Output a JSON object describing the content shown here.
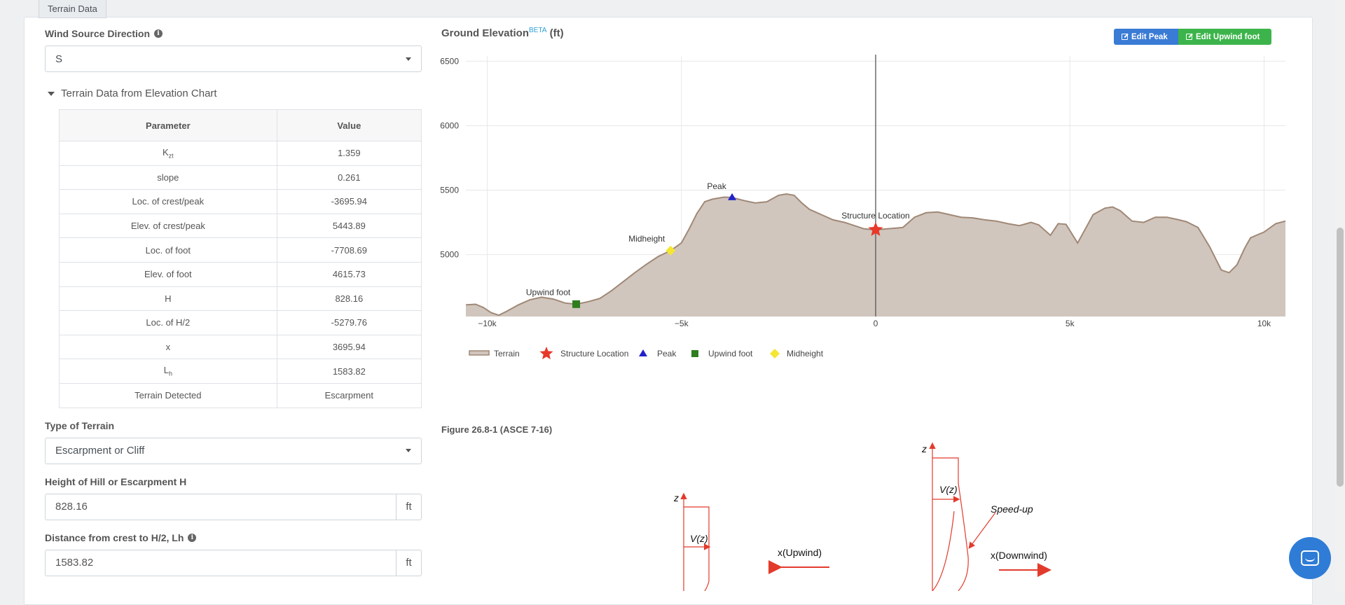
{
  "tab": {
    "label": "Terrain Data"
  },
  "wind": {
    "label": "Wind Source Direction",
    "value": "S"
  },
  "collapse": {
    "label": "Terrain Data from Elevation Chart"
  },
  "table": {
    "headers": [
      "Parameter",
      "Value"
    ],
    "rows": [
      {
        "param": "K",
        "sub": "zt",
        "value": "1.359"
      },
      {
        "param": "slope",
        "value": "0.261"
      },
      {
        "param": "Loc. of crest/peak",
        "value": "-3695.94"
      },
      {
        "param": "Elev. of crest/peak",
        "value": "5443.89"
      },
      {
        "param": "Loc. of foot",
        "value": "-7708.69"
      },
      {
        "param": "Elev. of foot",
        "value": "4615.73"
      },
      {
        "param": "H",
        "value": "828.16"
      },
      {
        "param": "Loc. of H/2",
        "value": "-5279.76"
      },
      {
        "param": "x",
        "value": "3695.94"
      },
      {
        "param": "L",
        "sub": "h",
        "value": "1583.82"
      },
      {
        "param": "Terrain Detected",
        "value": "Escarpment"
      }
    ]
  },
  "terrain_type": {
    "label": "Type of Terrain",
    "value": "Escarpment or Cliff"
  },
  "height": {
    "label": "Height of Hill or Escarpment H",
    "value": "828.16",
    "unit": "ft"
  },
  "distance": {
    "label": "Distance from crest to H/2, Lh",
    "value": "1583.82",
    "unit": "ft"
  },
  "chart_header": {
    "title": "Ground Elevation",
    "beta": "BETA",
    "unit": "(ft)"
  },
  "buttons": {
    "edit_peak": "Edit Peak",
    "edit_upwind": "Edit Upwind foot"
  },
  "chart_data": {
    "type": "area",
    "title": "Ground Elevation",
    "xlabel": "",
    "ylabel": "",
    "xlim": [
      -10550,
      10550
    ],
    "ylim": [
      4520,
      6540
    ],
    "x_ticks": [
      -10000,
      -5000,
      0,
      5000,
      10000
    ],
    "x_tick_labels": [
      "−10k",
      "−5k",
      "0",
      "5k",
      "10k"
    ],
    "y_ticks": [
      5000,
      5500,
      6000,
      6500
    ],
    "y_tick_labels": [
      "5000",
      "5500",
      "6000",
      "6500"
    ],
    "grid": true,
    "legend_position": "bottom-left",
    "series": [
      {
        "name": "Terrain",
        "color": "#a08876",
        "fill": "#d0c6be",
        "x": [
          -10550,
          -10300,
          -10100,
          -9900,
          -9700,
          -9500,
          -9200,
          -8900,
          -8600,
          -8300,
          -8000,
          -7708,
          -7400,
          -7100,
          -6800,
          -6500,
          -6200,
          -5900,
          -5600,
          -5279,
          -5000,
          -4800,
          -4600,
          -4400,
          -4200,
          -3900,
          -3695,
          -3400,
          -3100,
          -2800,
          -2500,
          -2300,
          -2100,
          -1900,
          -1700,
          -1400,
          -1100,
          -800,
          -500,
          -300,
          -100,
          0,
          300,
          700,
          1000,
          1300,
          1600,
          1900,
          2200,
          2500,
          2800,
          3100,
          3400,
          3700,
          4000,
          4200,
          4500,
          4700,
          4900,
          5200,
          5400,
          5600,
          5900,
          6100,
          6300,
          6600,
          6900,
          7200,
          7500,
          7800,
          8000,
          8300,
          8600,
          8900,
          9100,
          9300,
          9500,
          9650,
          9800,
          10000,
          10300,
          10550
        ],
        "y": [
          4610,
          4615,
          4590,
          4550,
          4530,
          4560,
          4610,
          4650,
          4670,
          4655,
          4625,
          4615,
          4635,
          4660,
          4720,
          4790,
          4860,
          4925,
          4985,
          5031,
          5090,
          5200,
          5320,
          5410,
          5430,
          5446,
          5443,
          5420,
          5400,
          5410,
          5460,
          5470,
          5460,
          5400,
          5350,
          5310,
          5270,
          5250,
          5220,
          5200,
          5195,
          5193,
          5200,
          5210,
          5290,
          5325,
          5330,
          5310,
          5290,
          5285,
          5270,
          5260,
          5240,
          5225,
          5250,
          5230,
          5150,
          5240,
          5235,
          5090,
          5200,
          5310,
          5360,
          5370,
          5340,
          5260,
          5250,
          5290,
          5290,
          5270,
          5255,
          5210,
          5060,
          4880,
          4860,
          4920,
          5050,
          5130,
          5150,
          5175,
          5240,
          5260
        ]
      },
      {
        "name": "Structure Location",
        "color": "#e8382a",
        "x": [
          0
        ],
        "y": [
          5193
        ]
      },
      {
        "name": "Peak",
        "color": "#2222cc",
        "x": [
          -3695.94
        ],
        "y": [
          5443.89
        ]
      },
      {
        "name": "Upwind foot",
        "color": "#2f7d1e",
        "x": [
          -7708.69
        ],
        "y": [
          4615.73
        ]
      },
      {
        "name": "Midheight",
        "color": "#f5e633",
        "x": [
          -5279.76
        ],
        "y": [
          5031
        ]
      }
    ],
    "annotations": [
      "Peak",
      "Midheight",
      "Upwind foot",
      "Structure Location"
    ]
  },
  "figure": {
    "title": "Figure 26.8-1 (ASCE 7-16)",
    "z1": "z",
    "vz1": "V(z)",
    "upwind": "x(Upwind)",
    "z2": "z",
    "vz2": "V(z)",
    "speedup": "Speed-up",
    "downwind": "x(Downwind)"
  }
}
